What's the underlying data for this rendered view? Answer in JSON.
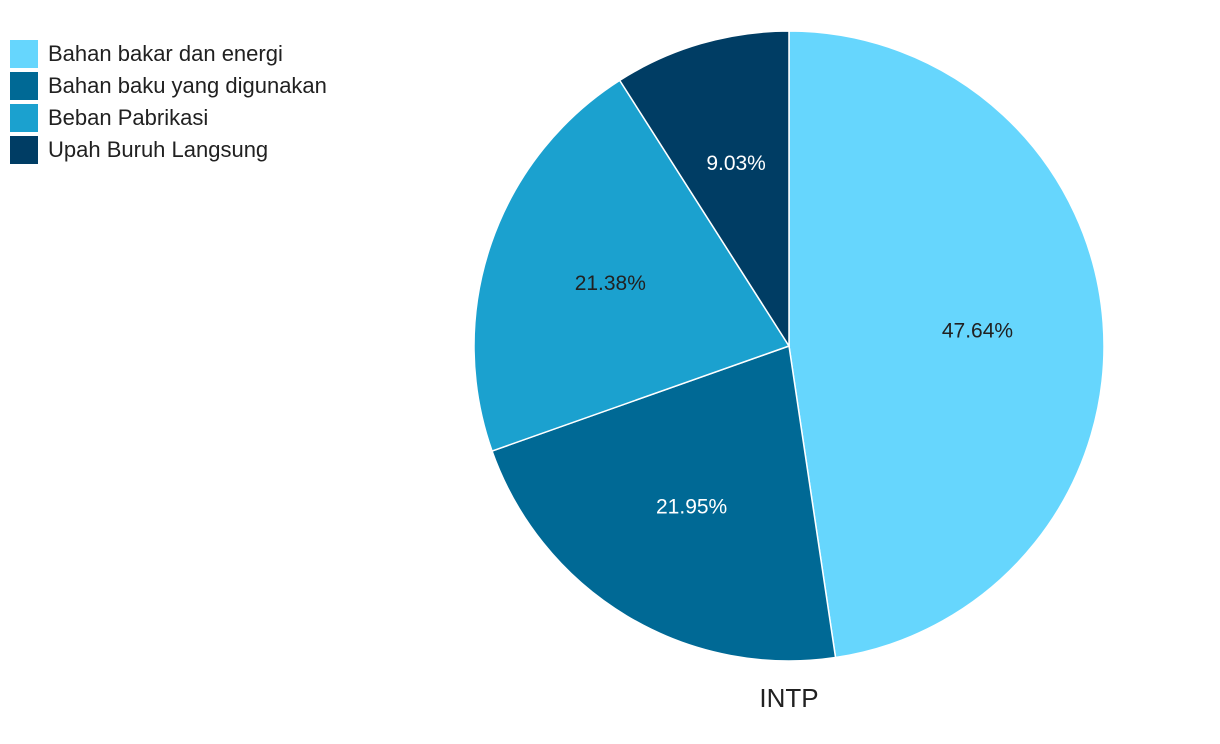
{
  "chart_data": {
    "type": "pie",
    "title": "INTP",
    "legend_position": "top-left",
    "categories": [
      "Bahan bakar dan energi",
      "Bahan baku yang digunakan",
      "Beban Pabrikasi",
      "Upah Buruh Langsung"
    ],
    "values": [
      47.64,
      21.95,
      21.38,
      9.03
    ],
    "labels": [
      "47.64%",
      "21.95%",
      "21.38%",
      "9.03%"
    ],
    "colors": [
      "#66d6fd",
      "#006995",
      "#1ba1cf",
      "#003d64"
    ],
    "label_colors": [
      "#212121",
      "#ffffff",
      "#212121",
      "#ffffff"
    ]
  }
}
